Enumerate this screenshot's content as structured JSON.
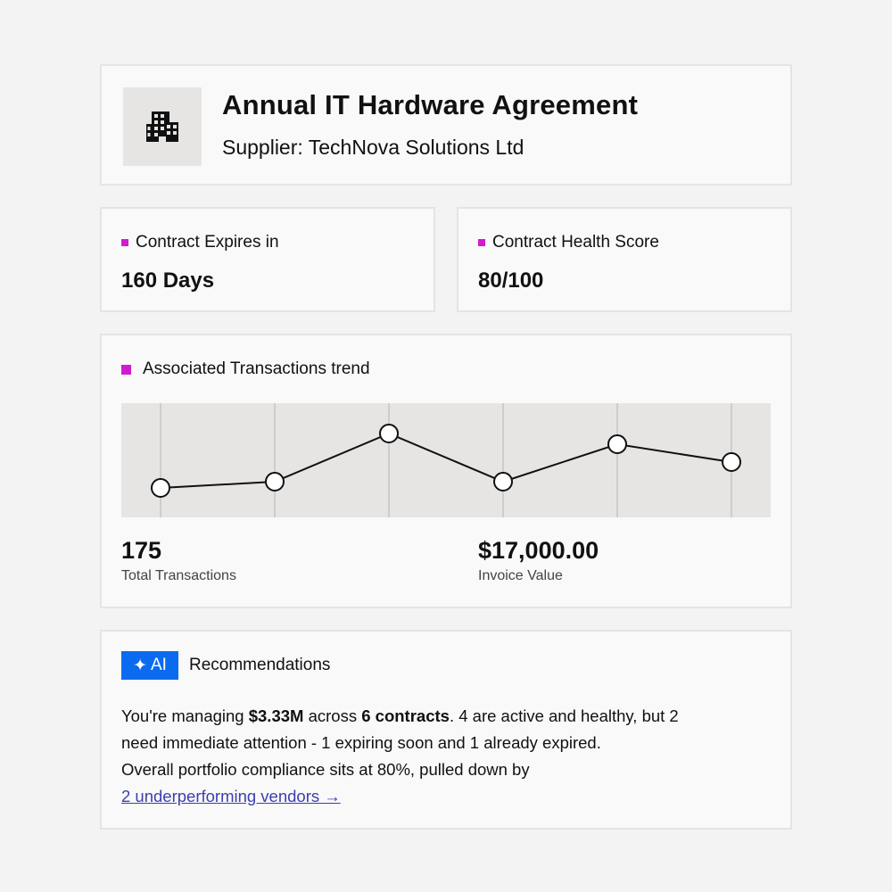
{
  "header": {
    "icon": "building-icon",
    "title": "Annual IT Hardware Agreement",
    "subtitle": "Supplier: TechNova Solutions Ltd"
  },
  "stats": [
    {
      "label": "Contract Expires in",
      "value": "160 Days"
    },
    {
      "label": "Contract Health Score",
      "value": "80/100"
    }
  ],
  "colors": {
    "accent_square": "#d01bd0",
    "ai_badge": "#0b6bf0",
    "link": "#3b3fb0"
  },
  "trend": {
    "title": "Associated Transactions trend",
    "metrics": [
      {
        "value": "175",
        "label": "Total Transactions"
      },
      {
        "value": "$17,000.00",
        "label": "Invoice Value"
      }
    ]
  },
  "chart_data": {
    "type": "line",
    "title": "",
    "xlabel": "",
    "ylabel": "",
    "x": [
      1,
      2,
      3,
      4,
      5,
      6
    ],
    "values": [
      33,
      40,
      94,
      40,
      82,
      62
    ],
    "ylim": [
      0,
      128
    ],
    "grid": "vertical",
    "axes_labeled": false
  },
  "ai": {
    "badge_icon": "sparkle-icon",
    "badge_label": "AI",
    "title": "Recommendations",
    "line1_pre": "You're managing ",
    "line1_bold1": "$3.33M",
    "line1_mid": " across ",
    "line1_bold2": "6 contracts",
    "line1_post": ". 4 are active and healthy, but 2",
    "line2": "need immediate attention - 1 expiring soon and 1 already expired.",
    "line3": "Overall portfolio compliance sits at 80%, pulled down by",
    "link": "2 underperforming vendors →"
  }
}
